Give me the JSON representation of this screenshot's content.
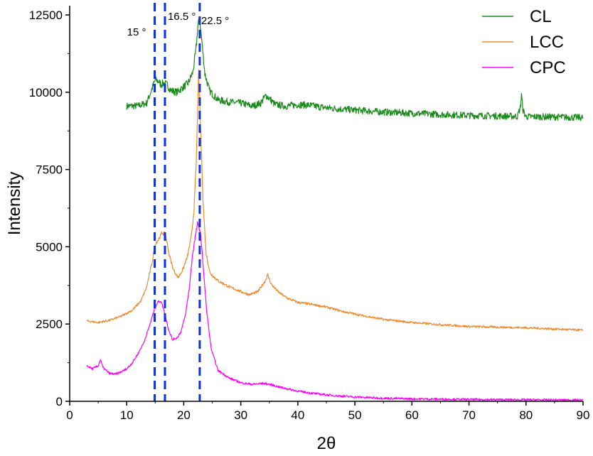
{
  "chart_data": {
    "type": "line",
    "xlabel": "2θ",
    "ylabel": "Intensity",
    "xlim": [
      0,
      90
    ],
    "ylim": [
      0,
      12800
    ],
    "x_ticks": [
      0,
      10,
      20,
      30,
      40,
      50,
      60,
      70,
      80,
      90
    ],
    "y_ticks": [
      0,
      2500,
      5000,
      7500,
      10000,
      12500
    ],
    "grid": false,
    "legend_position": "top-right",
    "series": [
      {
        "name": "CL",
        "color": "#1a8a1a",
        "points": [
          [
            10,
            9550
          ],
          [
            12,
            9560
          ],
          [
            13.5,
            9650
          ],
          [
            14.5,
            10150
          ],
          [
            15,
            10400
          ],
          [
            15.6,
            10350
          ],
          [
            16,
            10250
          ],
          [
            16.5,
            10300
          ],
          [
            17,
            10250
          ],
          [
            17.8,
            10050
          ],
          [
            18.8,
            10000
          ],
          [
            19.8,
            10150
          ],
          [
            20.8,
            10300
          ],
          [
            21.6,
            10650
          ],
          [
            22.1,
            11300
          ],
          [
            22.5,
            12200
          ],
          [
            22.8,
            12350
          ],
          [
            23.2,
            11600
          ],
          [
            23.7,
            10600
          ],
          [
            24.5,
            10050
          ],
          [
            26,
            9750
          ],
          [
            28,
            9680
          ],
          [
            30,
            9650
          ],
          [
            32,
            9550
          ],
          [
            33.5,
            9650
          ],
          [
            34.4,
            9900
          ],
          [
            35,
            9800
          ],
          [
            36,
            9600
          ],
          [
            38,
            9550
          ],
          [
            40,
            9600
          ],
          [
            42,
            9580
          ],
          [
            44,
            9520
          ],
          [
            46,
            9480
          ],
          [
            50,
            9420
          ],
          [
            55,
            9360
          ],
          [
            60,
            9320
          ],
          [
            65,
            9280
          ],
          [
            70,
            9250
          ],
          [
            75,
            9230
          ],
          [
            78.5,
            9220
          ],
          [
            79,
            9500
          ],
          [
            79.2,
            9900
          ],
          [
            79.5,
            9400
          ],
          [
            80,
            9210
          ],
          [
            85,
            9200
          ],
          [
            90,
            9180
          ]
        ]
      },
      {
        "name": "LCC",
        "color": "#ee8a30",
        "points": [
          [
            3,
            2600
          ],
          [
            5,
            2550
          ],
          [
            7,
            2620
          ],
          [
            9,
            2750
          ],
          [
            11,
            2950
          ],
          [
            12.5,
            3250
          ],
          [
            13.5,
            3700
          ],
          [
            14.5,
            4550
          ],
          [
            15,
            5100
          ],
          [
            15.6,
            5250
          ],
          [
            16.2,
            5450
          ],
          [
            16.8,
            5400
          ],
          [
            17.5,
            4700
          ],
          [
            18.2,
            4250
          ],
          [
            19,
            4000
          ],
          [
            19.8,
            4250
          ],
          [
            20.6,
            4650
          ],
          [
            21.3,
            5300
          ],
          [
            21.8,
            6200
          ],
          [
            22.2,
            7800
          ],
          [
            22.6,
            10600
          ],
          [
            23,
            8600
          ],
          [
            23.4,
            6400
          ],
          [
            23.9,
            4800
          ],
          [
            24.6,
            4150
          ],
          [
            26,
            3900
          ],
          [
            28,
            3700
          ],
          [
            30,
            3550
          ],
          [
            31.5,
            3450
          ],
          [
            33,
            3550
          ],
          [
            34.3,
            3900
          ],
          [
            34.7,
            4100
          ],
          [
            35.3,
            3800
          ],
          [
            36.5,
            3550
          ],
          [
            38,
            3350
          ],
          [
            40,
            3200
          ],
          [
            42,
            3150
          ],
          [
            45,
            3050
          ],
          [
            48,
            2900
          ],
          [
            52,
            2750
          ],
          [
            55,
            2650
          ],
          [
            60,
            2550
          ],
          [
            65,
            2480
          ],
          [
            70,
            2420
          ],
          [
            75,
            2400
          ],
          [
            80,
            2380
          ],
          [
            85,
            2340
          ],
          [
            90,
            2300
          ]
        ]
      },
      {
        "name": "CPC",
        "color": "#ff00ff",
        "points": [
          [
            3,
            1150
          ],
          [
            4,
            1050
          ],
          [
            5,
            1150
          ],
          [
            5.4,
            1350
          ],
          [
            5.8,
            1100
          ],
          [
            7,
            900
          ],
          [
            8,
            880
          ],
          [
            9,
            950
          ],
          [
            10,
            1050
          ],
          [
            11,
            1250
          ],
          [
            12,
            1550
          ],
          [
            13,
            1900
          ],
          [
            14,
            2450
          ],
          [
            14.8,
            2950
          ],
          [
            15.4,
            3200
          ],
          [
            16,
            3250
          ],
          [
            16.6,
            2900
          ],
          [
            17.3,
            2350
          ],
          [
            18,
            2000
          ],
          [
            18.8,
            2050
          ],
          [
            19.5,
            2250
          ],
          [
            20.3,
            2800
          ],
          [
            21,
            3700
          ],
          [
            21.5,
            4700
          ],
          [
            22,
            5300
          ],
          [
            22.4,
            5750
          ],
          [
            22.9,
            5500
          ],
          [
            23.4,
            4400
          ],
          [
            24,
            2950
          ],
          [
            24.8,
            1700
          ],
          [
            26,
            1000
          ],
          [
            28,
            750
          ],
          [
            30,
            600
          ],
          [
            32,
            550
          ],
          [
            34,
            580
          ],
          [
            35,
            550
          ],
          [
            37,
            450
          ],
          [
            40,
            330
          ],
          [
            43,
            250
          ],
          [
            46,
            190
          ],
          [
            50,
            140
          ],
          [
            55,
            100
          ],
          [
            60,
            80
          ],
          [
            65,
            70
          ],
          [
            70,
            60
          ],
          [
            75,
            55
          ],
          [
            80,
            50
          ],
          [
            85,
            45
          ],
          [
            90,
            40
          ]
        ]
      }
    ],
    "reference_lines": [
      {
        "x": 14.9,
        "label": "15 °"
      },
      {
        "x": 16.7,
        "label": "16.5 °"
      },
      {
        "x": 22.8,
        "label": "22.5 °"
      }
    ],
    "reference_line_color": "#1030e0"
  }
}
